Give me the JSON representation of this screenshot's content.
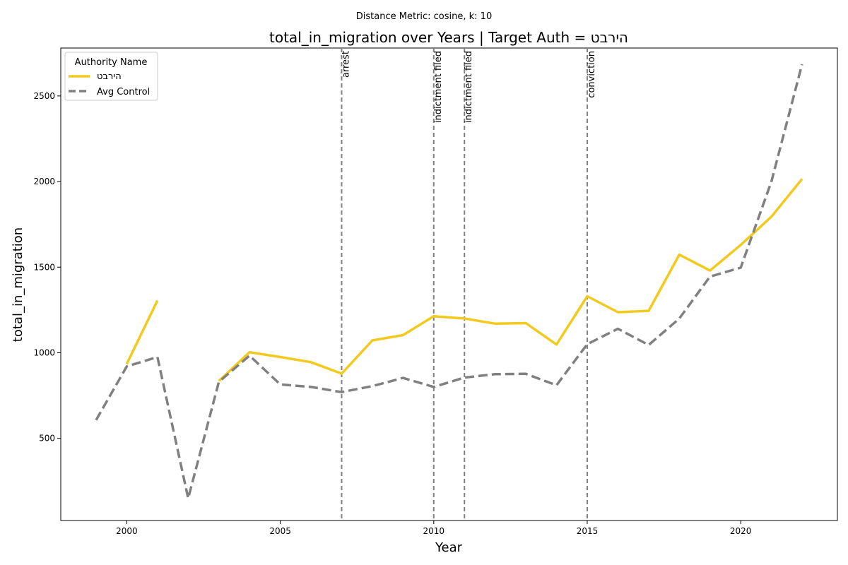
{
  "chart_data": {
    "type": "line",
    "subtitle": "Distance Metric: cosine, k: 10",
    "title": "total_in_migration over Years | Target Auth = הירבט",
    "xlabel": "Year",
    "ylabel": "total_in_migration",
    "xlim": [
      1997.85,
      2023.15
    ],
    "ylim": [
      20,
      2780
    ],
    "x_ticks": [
      2000,
      2005,
      2010,
      2015,
      2020
    ],
    "y_ticks": [
      500,
      1000,
      1500,
      2000,
      2500
    ],
    "grid": false,
    "legend": {
      "title": "Authority Name",
      "placement": "top-left"
    },
    "series": [
      {
        "name": "הירבט",
        "color": "#f2ca1e",
        "style": "solid",
        "points": [
          [
            2000,
            935
          ],
          [
            2001,
            1305
          ],
          [
            2002,
            null
          ],
          [
            2003,
            835
          ],
          [
            2004,
            1003
          ],
          [
            2005,
            975
          ],
          [
            2006,
            945
          ],
          [
            2007,
            878
          ],
          [
            2008,
            1072
          ],
          [
            2009,
            1103
          ],
          [
            2010,
            1213
          ],
          [
            2011,
            1200
          ],
          [
            2012,
            1170
          ],
          [
            2013,
            1173
          ],
          [
            2014,
            1048
          ],
          [
            2015,
            1330
          ],
          [
            2016,
            1237
          ],
          [
            2017,
            1245
          ],
          [
            2018,
            1573
          ],
          [
            2019,
            1480
          ],
          [
            2020,
            1630
          ],
          [
            2021,
            1795
          ],
          [
            2022,
            2015
          ]
        ]
      },
      {
        "name": "Avg Control",
        "color": "#808080",
        "style": "dashed",
        "points": [
          [
            1999,
            607
          ],
          [
            2000,
            920
          ],
          [
            2001,
            975
          ],
          [
            2002,
            150
          ],
          [
            2003,
            830
          ],
          [
            2004,
            983
          ],
          [
            2005,
            815
          ],
          [
            2006,
            800
          ],
          [
            2007,
            770
          ],
          [
            2008,
            805
          ],
          [
            2009,
            853
          ],
          [
            2010,
            800
          ],
          [
            2011,
            855
          ],
          [
            2012,
            875
          ],
          [
            2013,
            877
          ],
          [
            2014,
            810
          ],
          [
            2015,
            1050
          ],
          [
            2016,
            1140
          ],
          [
            2017,
            1045
          ],
          [
            2018,
            1200
          ],
          [
            2019,
            1445
          ],
          [
            2020,
            1497
          ],
          [
            2021,
            2000
          ],
          [
            2022,
            2685
          ]
        ]
      }
    ],
    "events": [
      {
        "x": 2007,
        "label": "arrest"
      },
      {
        "x": 2010,
        "label": "indictment filed"
      },
      {
        "x": 2011,
        "label": "indictment filed"
      },
      {
        "x": 2015,
        "label": "conviction"
      }
    ]
  }
}
